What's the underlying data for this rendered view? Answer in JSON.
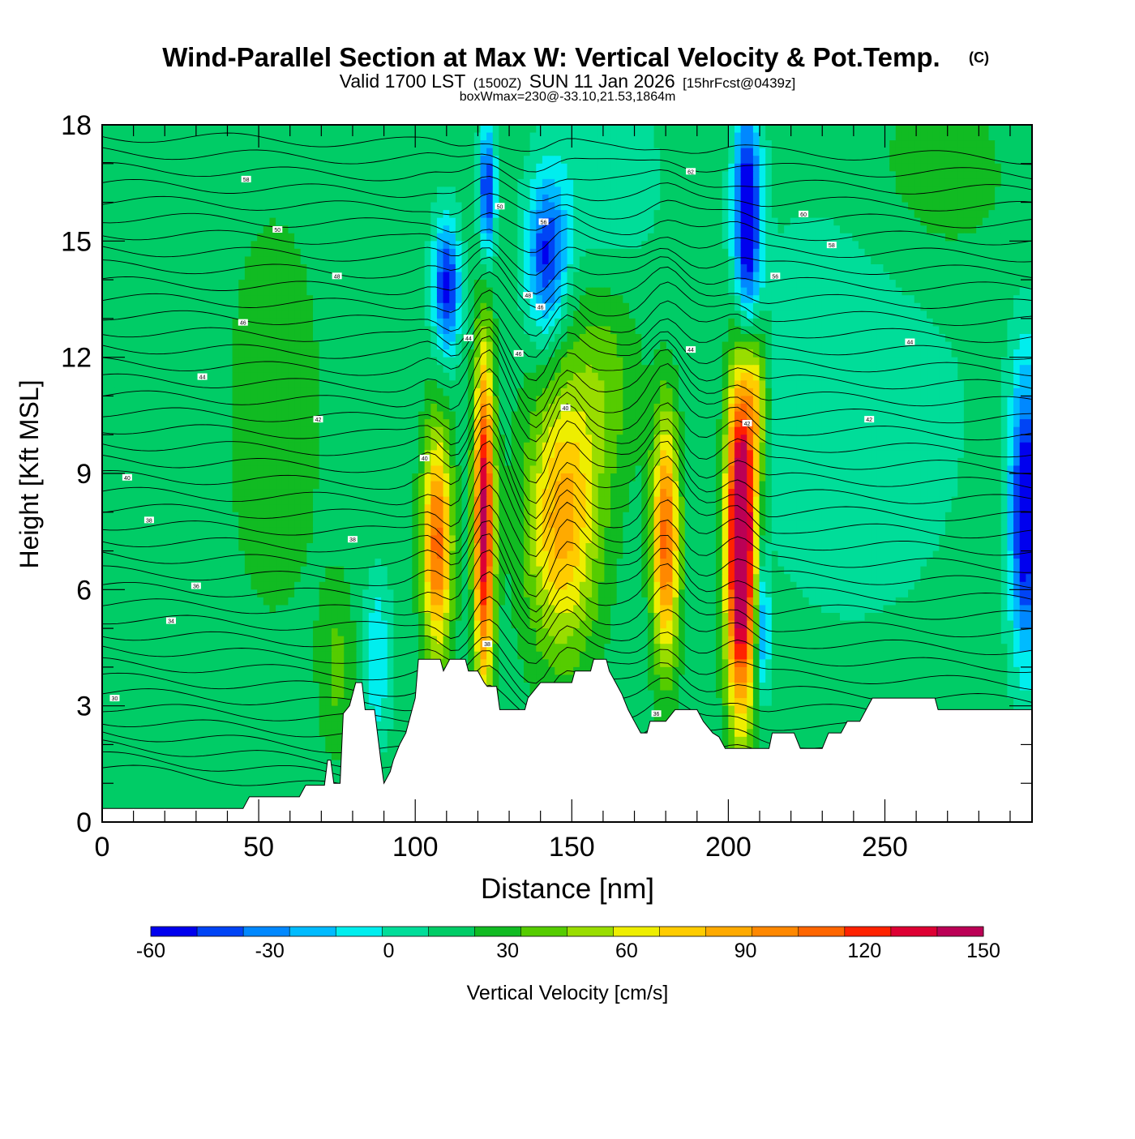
{
  "chart_data": {
    "type": "heatmap",
    "title": "Wind-Parallel Section at Max W: Vertical Velocity & Pot.Temp.",
    "title_suffix": "(C)",
    "subtitle_parts": [
      "Valid 1700 LST",
      "(1500Z)",
      "SUN 11 Jan 2026",
      "[15hrFcst@0439z]"
    ],
    "subtitle3": "boxWmax=230@-33.10,21.53,1864m",
    "xlabel": "Distance [nm]",
    "ylabel": "Height [Kft MSL]",
    "xlim": [
      0,
      297
    ],
    "ylim": [
      0,
      18
    ],
    "x_ticks": [
      0,
      50,
      100,
      150,
      200,
      250
    ],
    "y_ticks": [
      0,
      3,
      6,
      9,
      12,
      15,
      18
    ],
    "x_minor_step": 10,
    "y_minor_step": 1,
    "colorbar": {
      "label": "Vertical Velocity [cm/s]",
      "min": -60,
      "max": 150,
      "step": 10,
      "tick_labels": [
        "-60",
        "-30",
        "0",
        "30",
        "60",
        "90",
        "120",
        "150"
      ],
      "colors": [
        "#0000ee",
        "#0044f5",
        "#0088ff",
        "#00bbff",
        "#00eeee",
        "#00dd99",
        "#00cc66",
        "#11bb22",
        "#55cc00",
        "#99dd00",
        "#eeee00",
        "#ffcc00",
        "#ffaa00",
        "#ff8800",
        "#ff6600",
        "#ff2200",
        "#dd0033",
        "#bb0055"
      ]
    },
    "background_w": 5,
    "w_features": [
      {
        "x": 107,
        "y": 7.2,
        "sx": 3.2,
        "sy": 2.0,
        "w": 80
      },
      {
        "x": 122,
        "y": 7.8,
        "sx": 2.2,
        "sy": 3.0,
        "w": 110
      },
      {
        "x": 147,
        "y": 7.8,
        "sx": 8.0,
        "sy": 2.4,
        "w": 60
      },
      {
        "x": 180,
        "y": 7.3,
        "sx": 3.0,
        "sy": 2.2,
        "w": 80
      },
      {
        "x": 204,
        "y": 7.3,
        "sx": 3.2,
        "sy": 3.0,
        "w": 150
      },
      {
        "x": 209,
        "y": 11.0,
        "sx": 2.5,
        "sy": 1.4,
        "w": 40
      },
      {
        "x": 110,
        "y": 13.8,
        "sx": 3.0,
        "sy": 1.2,
        "w": -60
      },
      {
        "x": 123,
        "y": 16.3,
        "sx": 1.8,
        "sy": 1.2,
        "w": -60
      },
      {
        "x": 142,
        "y": 14.6,
        "sx": 4.5,
        "sy": 1.4,
        "w": -55
      },
      {
        "x": 206,
        "y": 15.5,
        "sx": 3.0,
        "sy": 2.0,
        "w": -75
      },
      {
        "x": 295,
        "y": 8.0,
        "sx": 3.5,
        "sy": 2.6,
        "w": -70
      },
      {
        "x": 88,
        "y": 4.2,
        "sx": 3.0,
        "sy": 1.5,
        "w": -25
      },
      {
        "x": 211,
        "y": 5.0,
        "sx": 1.5,
        "sy": 1.2,
        "w": -40
      },
      {
        "x": 55,
        "y": 10.5,
        "sx": 10.0,
        "sy": 3.5,
        "w": 14
      },
      {
        "x": 160,
        "y": 16.5,
        "sx": 12.0,
        "sy": 2.0,
        "w": -15
      },
      {
        "x": 240,
        "y": 11.0,
        "sx": 25.0,
        "sy": 4.0,
        "w": -14
      },
      {
        "x": 265,
        "y": 16.5,
        "sx": 18.0,
        "sy": 2.0,
        "w": 12
      },
      {
        "x": 75,
        "y": 4.0,
        "sx": 4.0,
        "sy": 1.5,
        "w": 18
      },
      {
        "x": 160,
        "y": 11.5,
        "sx": 8.0,
        "sy": 2.0,
        "w": 20
      }
    ],
    "terrain": [
      [
        0,
        0.35
      ],
      [
        45,
        0.35
      ],
      [
        47,
        0.65
      ],
      [
        63,
        0.65
      ],
      [
        65,
        0.95
      ],
      [
        71,
        0.95
      ],
      [
        72,
        1.6
      ],
      [
        73,
        1.6
      ],
      [
        74,
        1.0
      ],
      [
        76,
        1.0
      ],
      [
        77,
        2.8
      ],
      [
        79,
        3.0
      ],
      [
        81,
        3.6
      ],
      [
        83,
        3.6
      ],
      [
        84,
        2.9
      ],
      [
        87,
        2.9
      ],
      [
        89,
        1.6
      ],
      [
        90,
        1.0
      ],
      [
        92,
        1.3
      ],
      [
        93,
        1.6
      ],
      [
        95,
        2.0
      ],
      [
        97,
        2.3
      ],
      [
        99,
        2.9
      ],
      [
        100,
        3.2
      ],
      [
        101,
        4.2
      ],
      [
        108,
        4.2
      ],
      [
        109,
        3.9
      ],
      [
        111,
        4.2
      ],
      [
        116,
        4.2
      ],
      [
        117,
        3.9
      ],
      [
        120,
        3.9
      ],
      [
        122,
        3.6
      ],
      [
        123,
        3.5
      ],
      [
        126,
        3.5
      ],
      [
        127,
        2.9
      ],
      [
        135,
        2.9
      ],
      [
        136,
        3.2
      ],
      [
        140,
        3.6
      ],
      [
        150,
        3.6
      ],
      [
        151,
        3.9
      ],
      [
        156,
        3.9
      ],
      [
        157,
        4.2
      ],
      [
        161,
        4.2
      ],
      [
        162,
        3.9
      ],
      [
        164,
        3.6
      ],
      [
        166,
        3.3
      ],
      [
        168,
        2.9
      ],
      [
        170,
        2.6
      ],
      [
        172,
        2.3
      ],
      [
        174,
        2.3
      ],
      [
        175,
        2.6
      ],
      [
        180,
        2.6
      ],
      [
        183,
        2.9
      ],
      [
        190,
        2.9
      ],
      [
        192,
        2.6
      ],
      [
        195,
        2.3
      ],
      [
        197,
        2.2
      ],
      [
        199,
        1.9
      ],
      [
        213,
        1.9
      ],
      [
        214,
        2.3
      ],
      [
        221,
        2.3
      ],
      [
        223,
        1.9
      ],
      [
        230,
        1.9
      ],
      [
        232,
        2.3
      ],
      [
        236,
        2.3
      ],
      [
        238,
        2.6
      ],
      [
        242,
        2.6
      ],
      [
        244,
        2.9
      ],
      [
        246,
        3.2
      ],
      [
        250,
        3.2
      ],
      [
        252,
        3.2
      ],
      [
        266,
        3.2
      ],
      [
        267,
        2.9
      ],
      [
        297,
        2.9
      ]
    ],
    "theta_contour_labels": [
      {
        "x": 46,
        "y": 16.6,
        "label": "58"
      },
      {
        "x": 56,
        "y": 15.3,
        "label": "50"
      },
      {
        "x": 75,
        "y": 14.1,
        "label": "48"
      },
      {
        "x": 45,
        "y": 12.9,
        "label": "46"
      },
      {
        "x": 32,
        "y": 11.5,
        "label": "44"
      },
      {
        "x": 69,
        "y": 10.4,
        "label": "42"
      },
      {
        "x": 103,
        "y": 9.4,
        "label": "40"
      },
      {
        "x": 8,
        "y": 8.9,
        "label": "40"
      },
      {
        "x": 15,
        "y": 7.8,
        "label": "38"
      },
      {
        "x": 80,
        "y": 7.3,
        "label": "38"
      },
      {
        "x": 30,
        "y": 6.1,
        "label": "36"
      },
      {
        "x": 22,
        "y": 5.2,
        "label": "34"
      },
      {
        "x": 4,
        "y": 3.2,
        "label": "30"
      },
      {
        "x": 117,
        "y": 12.5,
        "label": "44"
      },
      {
        "x": 127,
        "y": 15.9,
        "label": "50"
      },
      {
        "x": 141,
        "y": 15.5,
        "label": "56"
      },
      {
        "x": 136,
        "y": 13.6,
        "label": "48"
      },
      {
        "x": 140,
        "y": 13.3,
        "label": "46"
      },
      {
        "x": 133,
        "y": 12.1,
        "label": "46"
      },
      {
        "x": 148,
        "y": 10.7,
        "label": "40"
      },
      {
        "x": 123,
        "y": 4.6,
        "label": "38"
      },
      {
        "x": 177,
        "y": 2.8,
        "label": "36"
      },
      {
        "x": 188,
        "y": 16.8,
        "label": "62"
      },
      {
        "x": 224,
        "y": 15.7,
        "label": "60"
      },
      {
        "x": 233,
        "y": 14.9,
        "label": "58"
      },
      {
        "x": 215,
        "y": 14.1,
        "label": "56"
      },
      {
        "x": 188,
        "y": 12.2,
        "label": "44"
      },
      {
        "x": 206,
        "y": 10.3,
        "label": "42"
      },
      {
        "x": 258,
        "y": 12.4,
        "label": "44"
      },
      {
        "x": 245,
        "y": 10.4,
        "label": "42"
      }
    ]
  }
}
